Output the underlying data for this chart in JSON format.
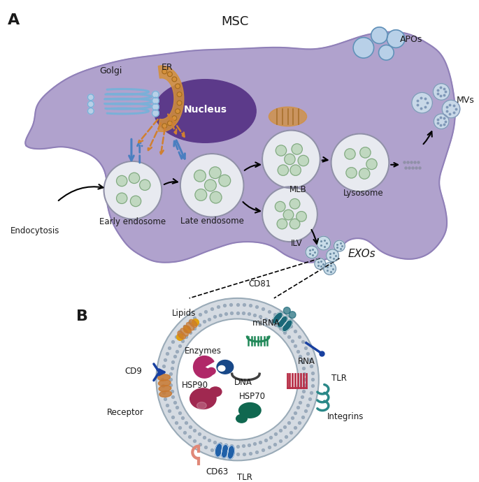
{
  "cell_color": "#a898c8",
  "cell_edge_color": "#9080b8",
  "nucleus_color": "#5c3a8a",
  "outer_cell_fill": "#b8aad8",
  "bg_color": "#ffffff",
  "text_color": "#1a1a1a",
  "arrow_blue": "#4a7fc0",
  "arrow_orange": "#d08030",
  "endosome_fill": "#e8eaf0",
  "endosome_edge": "#9090a8",
  "inner_vesicle_fill": "#c0d8c0",
  "inner_vesicle_edge": "#80a880",
  "golgi_color": "#7ab0d8",
  "er_color": "#d4903a",
  "mito_color": "#d4903a",
  "apo_fill": "#b8d0e8",
  "apo_edge": "#6090b8",
  "mv_fill": "#c8d8e8",
  "mv_edge": "#8098b8",
  "exo_fill": "#c8dce8",
  "exo_edge": "#7090a8",
  "bilayer_dot_color": "#9aaabb",
  "bilayer_fill": "#d5dbe2",
  "bilayer_inner_fill": "#ffffff",
  "cd9_color": "#c87830",
  "cd81_color": "#1a6878",
  "cd63_color": "#2060a8",
  "tlr_bottom_color": "#e08878",
  "tlr_right_color": "#2a8888",
  "receptor_color": "#1840a0",
  "integrins_color": "#1840a0",
  "hsp90_color": "#a02850",
  "hsp70_color": "#106850",
  "enzyme1_color": "#b02868",
  "enzyme2_color": "#184888",
  "mirna_color": "#208858",
  "rna_color": "#b83048",
  "dna_color": "#404040",
  "lipid_dot_color": "#e0a010",
  "lipid_tube_color": "#c87830",
  "panel_a": "A",
  "panel_b": "B",
  "msc_label": "MSC",
  "golgi_label": "Golgi",
  "er_label": "ER",
  "nucleus_label": "Nucleus",
  "early_label": "Early endosome",
  "late_label": "Late endosome",
  "mlb_label": "MLB",
  "ilv_label": "ILV",
  "lysosome_label": "Lysosome",
  "endocytosis_label": "Endocytosis",
  "apos_label": "APOs",
  "mvs_label": "MVs",
  "exos_label": "EXOs",
  "lipids_label": "Lipids",
  "cd81_label": "CD81",
  "mirna_label": "miRNA",
  "rna_label": "RNA",
  "dna_label": "DNA",
  "hsp90_label": "HSP90",
  "hsp70_label": "HSP70",
  "cd9_label": "CD9",
  "cd63_label": "CD63",
  "tlr_bottom_label": "TLR",
  "tlr_right_label": "TLR",
  "receptor_label": "Receptor",
  "integrins_label": "Integrins",
  "enzymes_label": "Enzymes"
}
